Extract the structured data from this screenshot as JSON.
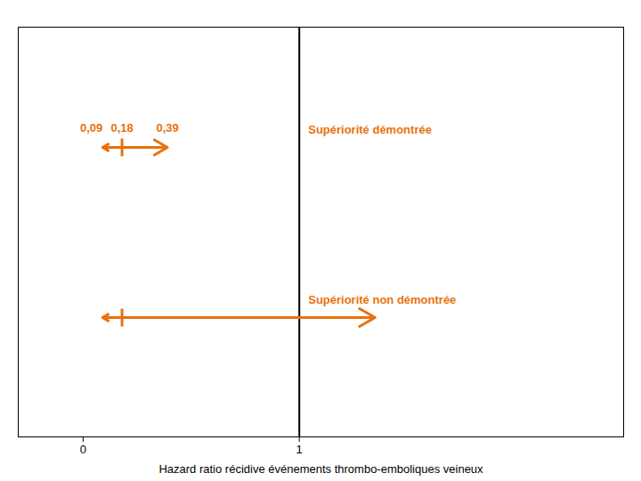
{
  "chart_data": {
    "type": "forest",
    "xlabel": "Hazard ratio récidive événements thrombo-emboliques veineux",
    "categories": [
      "Supériorité démontrée",
      "Supériorité non démontrée"
    ],
    "low": [
      0.09,
      0.09
    ],
    "values": [
      0.18,
      0.18
    ],
    "high": [
      0.39,
      1.35
    ],
    "low_labels": [
      "0,09",
      null
    ],
    "value_labels": [
      "0,18",
      null
    ],
    "high_labels": [
      "0,39",
      null
    ],
    "color": "#E8720C",
    "xlim": [
      -0.3,
      2.5
    ],
    "xticks": [
      0,
      1
    ],
    "reference_line": 1,
    "tick_labels": "x"
  }
}
